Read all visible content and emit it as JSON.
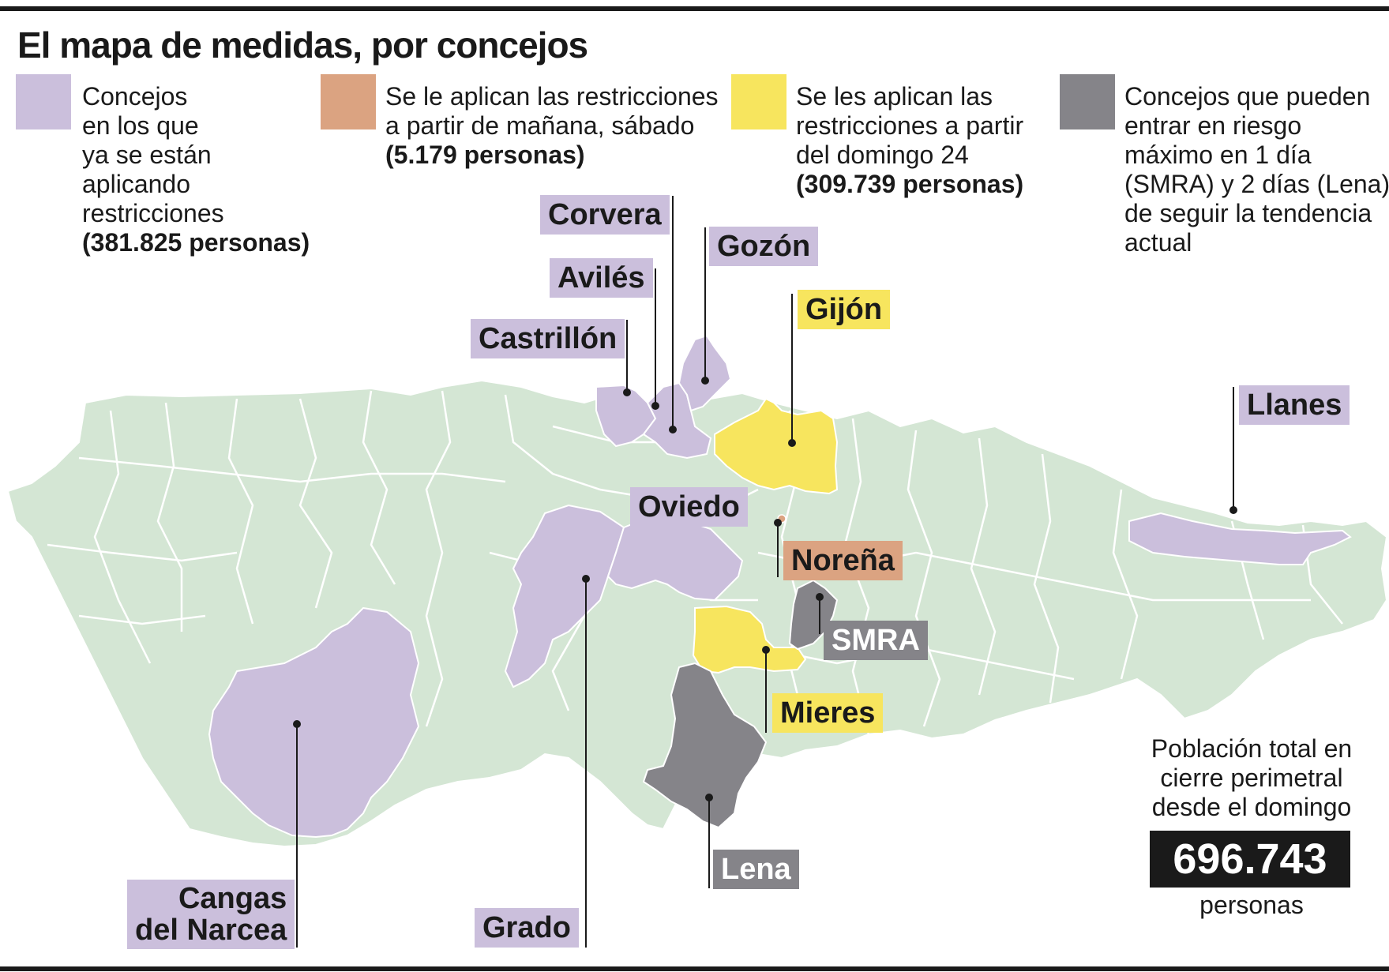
{
  "title": "El mapa de medidas, por concejos",
  "colors": {
    "base_land": "#d4e6d4",
    "purple": "#cbbfdc",
    "orange": "#dba381",
    "yellow": "#f7e55e",
    "grey": "#858489",
    "borders": "#ffffff"
  },
  "legend": [
    {
      "key": "purple",
      "lines": [
        "Concejos",
        "en los que",
        "ya se están",
        "aplicando",
        "restricciones"
      ],
      "bold": "(381.825 personas)"
    },
    {
      "key": "orange",
      "lines": [
        "Se le aplican las restricciones",
        "a partir de mañana, sábado"
      ],
      "bold": "(5.179 personas)"
    },
    {
      "key": "yellow",
      "lines": [
        "Se les aplican las",
        "restricciones a partir",
        "del domingo 24"
      ],
      "bold": "(309.739 personas)"
    },
    {
      "key": "grey",
      "lines": [
        "Concejos que pueden",
        "entrar en riesgo",
        "máximo en 1 día",
        "(SMRA) y 2 días (Lena)",
        "de seguir la tendencia",
        "actual"
      ],
      "bold": ""
    }
  ],
  "municipalities": {
    "corvera": "Corvera",
    "gozon": "Gozón",
    "aviles": "Avilés",
    "gijon": "Gijón",
    "castrillon": "Castrillón",
    "llanes": "Llanes",
    "oviedo": "Oviedo",
    "norena": "Noreña",
    "smra": "SMRA",
    "mieres": "Mieres",
    "lena": "Lena",
    "grado": "Grado",
    "cangas_line1": "Cangas",
    "cangas_line2": "del Narcea"
  },
  "total": {
    "caption_line1": "Población total en",
    "caption_line2": "cierre perimetral",
    "caption_line3": "desde el domingo",
    "value": "696.743",
    "unit": "personas"
  }
}
